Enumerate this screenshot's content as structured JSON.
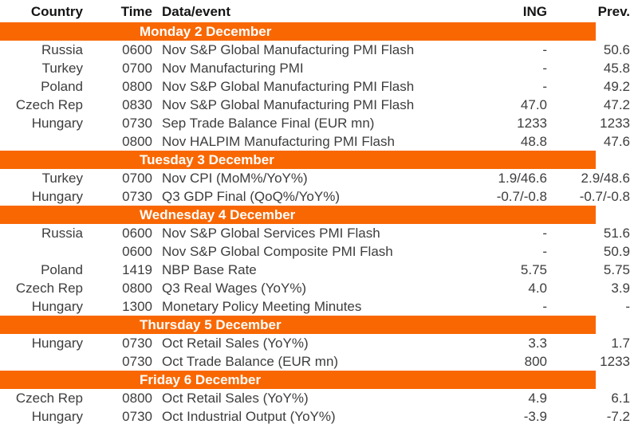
{
  "colors": {
    "accent_orange": "#F96702",
    "band_text": "#FFFFFF",
    "header_text": "#141414",
    "body_text": "#3D3D3D"
  },
  "table": {
    "columns": [
      {
        "label": "Country",
        "align": "right"
      },
      {
        "label": "Time",
        "align": "right"
      },
      {
        "label": "Data/event",
        "align": "left"
      },
      {
        "label": "ING",
        "align": "right"
      },
      {
        "label": "Prev.",
        "align": "right"
      }
    ],
    "sections": [
      {
        "day_label": "Monday 2 December",
        "rows": [
          {
            "country": "Russia",
            "time": "0600",
            "event": "Nov S&P Global Manufacturing PMI Flash",
            "ing": "-",
            "prev": "50.6"
          },
          {
            "country": "Turkey",
            "time": "0700",
            "event": "Nov Manufacturing PMI",
            "ing": "-",
            "prev": "45.8"
          },
          {
            "country": "Poland",
            "time": "0800",
            "event": "Nov S&P Global Manufacturing PMI Flash",
            "ing": "-",
            "prev": "49.2"
          },
          {
            "country": "Czech Rep",
            "time": "0830",
            "event": "Nov S&P Global Manufacturing PMI Flash",
            "ing": "47.0",
            "prev": "47.2"
          },
          {
            "country": "Hungary",
            "time": "0730",
            "event": "Sep Trade Balance Final (EUR mn)",
            "ing": "1233",
            "prev": "1233"
          },
          {
            "country": "",
            "time": "0800",
            "event": "Nov HALPIM Manufacturing PMI Flash",
            "ing": "48.8",
            "prev": "47.6"
          }
        ]
      },
      {
        "day_label": "Tuesday 3 December",
        "rows": [
          {
            "country": "Turkey",
            "time": "0700",
            "event": "Nov CPI (MoM%/YoY%)",
            "ing": "1.9/46.6",
            "prev": "2.9/48.6"
          },
          {
            "country": "Hungary",
            "time": "0730",
            "event": "Q3 GDP Final (QoQ%/YoY%)",
            "ing": "-0.7/-0.8",
            "prev": "-0.7/-0.8"
          }
        ]
      },
      {
        "day_label": "Wednesday 4 December",
        "rows": [
          {
            "country": "Russia",
            "time": "0600",
            "event": "Nov S&P Global Services PMI Flash",
            "ing": "-",
            "prev": "51.6"
          },
          {
            "country": "",
            "time": "0600",
            "event": "Nov S&P Global Composite PMI Flash",
            "ing": "-",
            "prev": "50.9"
          },
          {
            "country": "Poland",
            "time": "1419",
            "event": "NBP Base Rate",
            "ing": "5.75",
            "prev": "5.75"
          },
          {
            "country": "Czech Rep",
            "time": "0800",
            "event": "Q3 Real Wages (YoY%)",
            "ing": "4.0",
            "prev": "3.9"
          },
          {
            "country": "Hungary",
            "time": "1300",
            "event": "Monetary Policy Meeting Minutes",
            "ing": "-",
            "prev": "-"
          }
        ]
      },
      {
        "day_label": "Thursday 5 December",
        "rows": [
          {
            "country": "Hungary",
            "time": "0730",
            "event": "Oct Retail Sales (YoY%)",
            "ing": "3.3",
            "prev": "1.7"
          },
          {
            "country": "",
            "time": "0730",
            "event": "Oct Trade Balance (EUR mn)",
            "ing": "800",
            "prev": "1233"
          }
        ]
      },
      {
        "day_label": "Friday 6 December",
        "rows": [
          {
            "country": "Czech Rep",
            "time": "0800",
            "event": "Oct Retail Sales (YoY%)",
            "ing": "4.9",
            "prev": "6.1"
          },
          {
            "country": "Hungary",
            "time": "0730",
            "event": "Oct Industrial Output (YoY%)",
            "ing": "-3.9",
            "prev": "-7.2"
          }
        ]
      }
    ]
  }
}
